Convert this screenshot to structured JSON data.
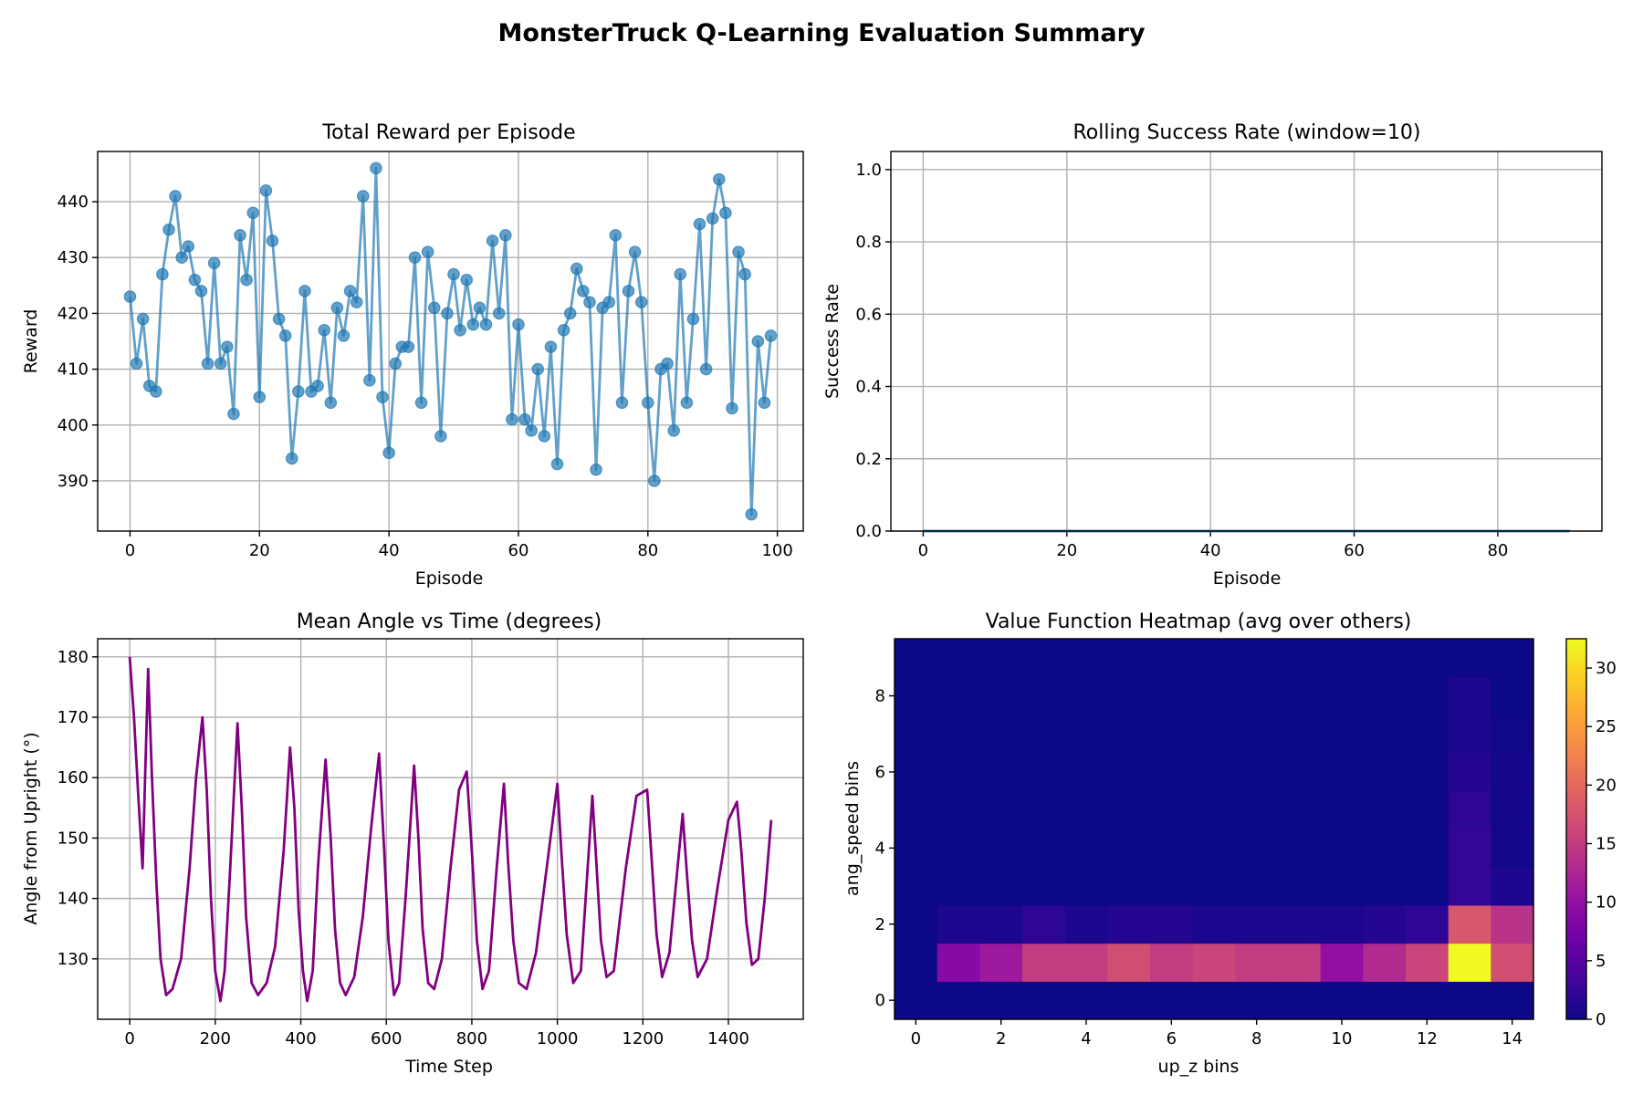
{
  "figure_title": "MonsterTruck Q-Learning Evaluation Summary",
  "chart_data": [
    {
      "type": "line",
      "title": "Total Reward per Episode",
      "xlabel": "Episode",
      "ylabel": "Reward",
      "xlim": [
        -5,
        104
      ],
      "ylim": [
        381,
        449
      ],
      "xticks": [
        0,
        20,
        40,
        60,
        80,
        100
      ],
      "yticks": [
        390,
        400,
        410,
        420,
        430,
        440
      ],
      "grid": true,
      "color": "#1f77b4",
      "marker": "circle",
      "x_start": 0,
      "values": [
        423,
        411,
        419,
        407,
        406,
        427,
        435,
        441,
        430,
        432,
        426,
        424,
        411,
        429,
        411,
        414,
        402,
        434,
        426,
        438,
        405,
        442,
        433,
        419,
        416,
        394,
        406,
        424,
        406,
        407,
        417,
        404,
        421,
        416,
        424,
        422,
        441,
        408,
        446,
        405,
        395,
        411,
        414,
        414,
        430,
        404,
        431,
        421,
        398,
        420,
        427,
        417,
        426,
        418,
        421,
        418,
        433,
        420,
        434,
        401,
        418,
        401,
        399,
        410,
        398,
        414,
        393,
        417,
        420,
        428,
        424,
        422,
        392,
        421,
        422,
        434,
        404,
        424,
        431,
        422,
        404,
        390,
        410,
        411,
        399,
        427,
        404,
        419,
        436,
        410,
        437,
        444,
        438,
        403,
        431,
        427,
        384,
        415,
        404,
        416
      ]
    },
    {
      "type": "line",
      "title": "Rolling Success Rate (window=10)",
      "xlabel": "Episode",
      "ylabel": "Success Rate",
      "xlim": [
        -4.5,
        94.5
      ],
      "ylim": [
        0.0,
        1.05
      ],
      "xticks": [
        0,
        20,
        40,
        60,
        80
      ],
      "yticks": [
        0.0,
        0.2,
        0.4,
        0.6,
        0.8,
        1.0
      ],
      "ytick_labels": [
        "0.0",
        "0.2",
        "0.4",
        "0.6",
        "0.8",
        "1.0"
      ],
      "grid": true,
      "color": "#1f77b4",
      "x_start": 0,
      "values": [
        0,
        0,
        0,
        0,
        0,
        0,
        0,
        0,
        0,
        0,
        0,
        0,
        0,
        0,
        0,
        0,
        0,
        0,
        0,
        0,
        0,
        0,
        0,
        0,
        0,
        0,
        0,
        0,
        0,
        0,
        0,
        0,
        0,
        0,
        0,
        0,
        0,
        0,
        0,
        0,
        0,
        0,
        0,
        0,
        0,
        0,
        0,
        0,
        0,
        0,
        0,
        0,
        0,
        0,
        0,
        0,
        0,
        0,
        0,
        0,
        0,
        0,
        0,
        0,
        0,
        0,
        0,
        0,
        0,
        0,
        0,
        0,
        0,
        0,
        0,
        0,
        0,
        0,
        0,
        0,
        0,
        0,
        0,
        0,
        0,
        0,
        0,
        0,
        0,
        0,
        0
      ]
    },
    {
      "type": "line",
      "title": "Mean Angle vs Time (degrees)",
      "xlabel": "Time Step",
      "ylabel": "Angle from Upright (°)",
      "xlim": [
        -75,
        1575
      ],
      "ylim": [
        120,
        183
      ],
      "xticks": [
        0,
        200,
        400,
        600,
        800,
        1000,
        1200,
        1400
      ],
      "yticks": [
        130,
        140,
        150,
        160,
        170,
        180
      ],
      "grid": true,
      "color": "#800080",
      "x": [
        0,
        10,
        20,
        30,
        43,
        52,
        62,
        72,
        85,
        100,
        120,
        140,
        155,
        170,
        180,
        190,
        200,
        212,
        222,
        235,
        252,
        262,
        272,
        285,
        300,
        320,
        340,
        360,
        375,
        385,
        395,
        405,
        415,
        428,
        440,
        458,
        470,
        480,
        492,
        505,
        525,
        545,
        565,
        583,
        595,
        605,
        618,
        630,
        645,
        665,
        675,
        685,
        698,
        712,
        730,
        750,
        770,
        788,
        800,
        812,
        825,
        840,
        858,
        875,
        885,
        897,
        910,
        928,
        950,
        975,
        1000,
        1010,
        1022,
        1037,
        1055,
        1082,
        1092,
        1102,
        1115,
        1132,
        1160,
        1185,
        1210,
        1220,
        1232,
        1245,
        1262,
        1293,
        1303,
        1315,
        1328,
        1350,
        1375,
        1400,
        1420,
        1430,
        1442,
        1455,
        1470,
        1485,
        1500
      ],
      "y": [
        180,
        170,
        157,
        145,
        178,
        160,
        143,
        130,
        124,
        125,
        130,
        145,
        160,
        170,
        158,
        140,
        128,
        123,
        128,
        145,
        169,
        155,
        137,
        126,
        124,
        126,
        132,
        148,
        165,
        155,
        138,
        128,
        123,
        128,
        145,
        163,
        150,
        135,
        126,
        124,
        127,
        137,
        152,
        164,
        148,
        133,
        124,
        126,
        140,
        162,
        150,
        135,
        126,
        125,
        130,
        145,
        158,
        161,
        148,
        133,
        125,
        128,
        145,
        159,
        146,
        133,
        126,
        125,
        131,
        145,
        159,
        147,
        134,
        126,
        128,
        157,
        145,
        133,
        127,
        128,
        145,
        157,
        158,
        147,
        134,
        127,
        131,
        154,
        144,
        133,
        127,
        130,
        142,
        153,
        156,
        148,
        136,
        129,
        130,
        140,
        153
      ]
    },
    {
      "type": "heatmap",
      "title": "Value Function Heatmap (avg over others)",
      "xlabel": "up_z bins",
      "ylabel": "ang_speed bins",
      "colormap": "plasma",
      "vmin": 0,
      "vmax": 32.5,
      "xticks": [
        0,
        2,
        4,
        6,
        8,
        10,
        12,
        14
      ],
      "yticks": [
        0,
        2,
        4,
        6,
        8
      ],
      "colorbar_ticks": [
        0,
        5,
        10,
        15,
        20,
        25,
        30
      ],
      "rows": [
        [
          0,
          0,
          0,
          0,
          0,
          0,
          0,
          0,
          0,
          0,
          0,
          0,
          0,
          0,
          0
        ],
        [
          0,
          9,
          11,
          15,
          15,
          17,
          15,
          16,
          15,
          15,
          10,
          13,
          16,
          32.5,
          17
        ],
        [
          0,
          1,
          1,
          2,
          1,
          1.5,
          1.5,
          1,
          1,
          1,
          1,
          1.5,
          2,
          18,
          14
        ],
        [
          0,
          0,
          0,
          0,
          0,
          0,
          0,
          0,
          0,
          0,
          0,
          0,
          0,
          2.5,
          1
        ],
        [
          0,
          0,
          0,
          0,
          0,
          0,
          0,
          0,
          0,
          0,
          0,
          0,
          0,
          2.5,
          0.5
        ],
        [
          0,
          0,
          0,
          0,
          0,
          0,
          0,
          0,
          0,
          0,
          0,
          0,
          0,
          2,
          0.5
        ],
        [
          0,
          0,
          0,
          0,
          0,
          0,
          0,
          0,
          0,
          0,
          0,
          0,
          0,
          1.5,
          0.5
        ],
        [
          0,
          0,
          0,
          0,
          0,
          0,
          0,
          0,
          0,
          0,
          0,
          0,
          0,
          1,
          0.2
        ],
        [
          0,
          0,
          0,
          0,
          0,
          0,
          0,
          0,
          0,
          0,
          0,
          0,
          0,
          1,
          0
        ],
        [
          0,
          0,
          0,
          0,
          0,
          0,
          0,
          0,
          0,
          0,
          0,
          0,
          0,
          0,
          0
        ]
      ]
    }
  ]
}
